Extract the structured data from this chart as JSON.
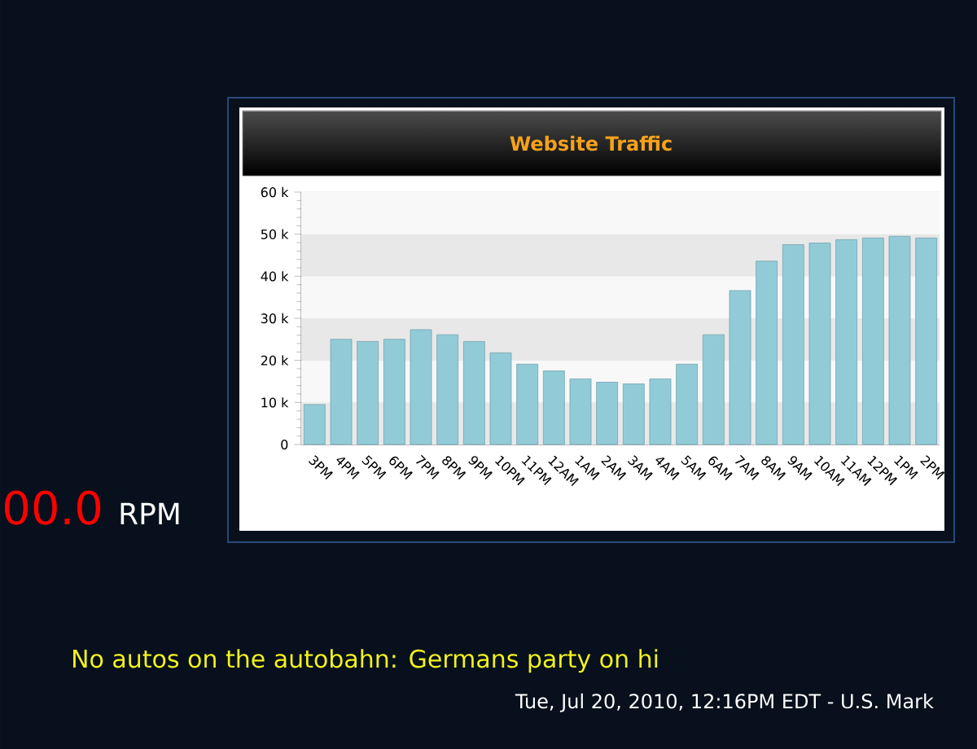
{
  "chart_data": {
    "type": "bar",
    "title": "Website Traffic",
    "categories": [
      "3PM",
      "4PM",
      "5PM",
      "6PM",
      "7PM",
      "8PM",
      "9PM",
      "10PM",
      "11PM",
      "12AM",
      "1AM",
      "2AM",
      "3AM",
      "4AM",
      "5AM",
      "6AM",
      "7AM",
      "8AM",
      "9AM",
      "10AM",
      "11AM",
      "12PM",
      "1PM",
      "2PM"
    ],
    "values": [
      9500,
      25000,
      24500,
      25000,
      27300,
      26100,
      24500,
      21800,
      19100,
      17500,
      15600,
      14800,
      14400,
      15600,
      19100,
      26100,
      36600,
      43600,
      47500,
      47900,
      48700,
      49100,
      49500,
      49100
    ],
    "color": "#92cbd8",
    "ylim": [
      0,
      60000
    ],
    "yticks": [
      {
        "value": 0,
        "label": "0"
      },
      {
        "value": 10000,
        "label": "10 k"
      },
      {
        "value": 20000,
        "label": "20 k"
      },
      {
        "value": 30000,
        "label": "30 k"
      },
      {
        "value": 40000,
        "label": "40 k"
      },
      {
        "value": 50000,
        "label": "50 k"
      },
      {
        "value": 60000,
        "label": "60 k"
      }
    ],
    "grid": "y",
    "annotations": [
      "00.0",
      "RPM",
      "No autos on the autobahn: Germans party on hi",
      "Tue, Jul 20, 2010, 12:16PM EDT - U.S. Mark"
    ]
  }
}
